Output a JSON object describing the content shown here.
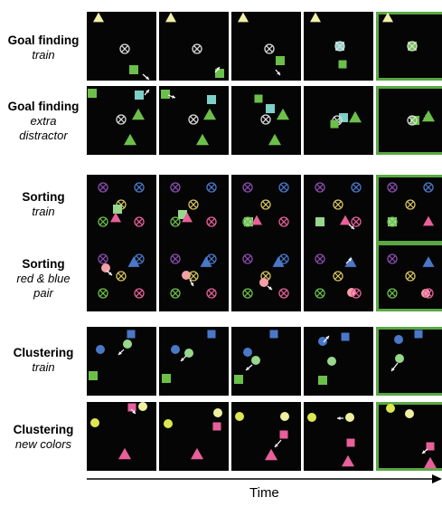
{
  "x_axis_label": "Time",
  "colors": {
    "panel_bg": "#050505",
    "final_border": "#5aa844",
    "yellow": "#f2f0a8",
    "green": "#6cc04a",
    "light_green": "#98d78c",
    "teal": "#7ecfc8",
    "blue": "#4a78c8",
    "purple": "#8a4dae",
    "gold": "#d6c460",
    "pink": "#e8609a",
    "salmon": "#f2a0a8",
    "lime": "#dce850",
    "pale_yellow": "#f0f0a0"
  },
  "rows": [
    {
      "title": "Goal finding",
      "subtitle": [
        "train"
      ]
    },
    {
      "title": "Goal finding",
      "subtitle": [
        "extra",
        "distractor"
      ]
    },
    {
      "title": "Sorting",
      "subtitle": [
        "train"
      ]
    },
    {
      "title": "Sorting",
      "subtitle": [
        "red & blue",
        "pair"
      ]
    },
    {
      "title": "Clustering",
      "subtitle": [
        "train"
      ]
    },
    {
      "title": "Clustering",
      "subtitle": [
        "new colors"
      ]
    }
  ]
}
